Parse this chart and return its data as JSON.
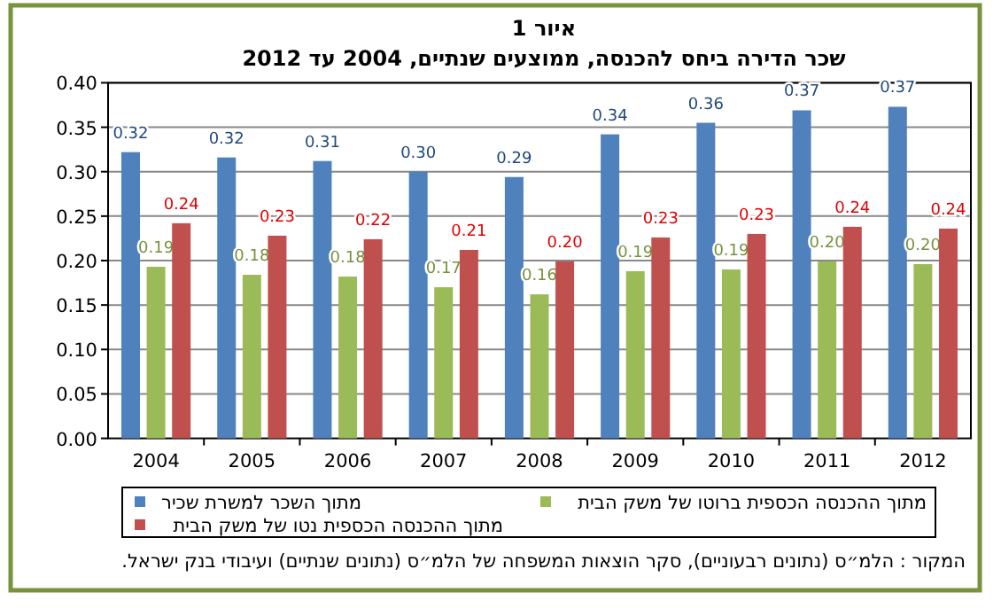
{
  "chart_data": {
    "type": "bar",
    "title": "איור 1",
    "subtitle": "שכר הדירה ביחס להכנסה, ממוצעים שנתיים, 2004 עד 2012",
    "categories": [
      "2004",
      "2005",
      "2006",
      "2007",
      "2008",
      "2009",
      "2010",
      "2011",
      "2012"
    ],
    "series": [
      {
        "name": "מתוך השכר למשרת שכיר",
        "color": "#4f81bd",
        "values": [
          0.322,
          0.316,
          0.312,
          0.3,
          0.294,
          0.342,
          0.355,
          0.369,
          0.373
        ],
        "value_labels": [
          "0.32",
          "0.32",
          "0.31",
          "0.30",
          "0.29",
          "0.34",
          "0.36",
          "0.37",
          "0.37"
        ]
      },
      {
        "name": "מתוך ההכנסה הכספית ברוטו של משק הבית",
        "color": "#9bbb59",
        "values": [
          0.193,
          0.184,
          0.182,
          0.17,
          0.162,
          0.188,
          0.19,
          0.199,
          0.196
        ],
        "value_labels": [
          "0.19",
          "0.18",
          "0.18",
          "0.17",
          "0.16",
          "0.19",
          "0.19",
          "0.20",
          "0.20"
        ]
      },
      {
        "name": "מתוך ההכנסה הכספית נטו של משק הבית",
        "color": "#c0504d",
        "values": [
          0.242,
          0.228,
          0.224,
          0.212,
          0.199,
          0.226,
          0.23,
          0.238,
          0.236
        ],
        "value_labels": [
          "0.24",
          "0.23",
          "0.22",
          "0.21",
          "0.20",
          "0.23",
          "0.23",
          "0.24",
          "0.24"
        ]
      }
    ],
    "ylim": [
      0,
      0.4
    ],
    "yticks": [
      {
        "value": 0,
        "label": "0.00"
      },
      {
        "value": 0.05,
        "label": "0.05"
      },
      {
        "value": 0.1,
        "label": "0.10"
      },
      {
        "value": 0.15,
        "label": "0.15"
      },
      {
        "value": 0.2,
        "label": "0.20"
      },
      {
        "value": 0.25,
        "label": "0.25"
      },
      {
        "value": 0.3,
        "label": "0.30"
      },
      {
        "value": 0.35,
        "label": "0.35"
      },
      {
        "value": 0.4,
        "label": "0.40"
      }
    ],
    "grid": "y",
    "legend": "bottom",
    "annotations": [
      "המקור : הלמ״ס (נתונים רבעוניים), סקר הוצאות המשפחה של הלמ״ס (נתונים שנתיים) ועיבודי בנק ישראל."
    ]
  }
}
